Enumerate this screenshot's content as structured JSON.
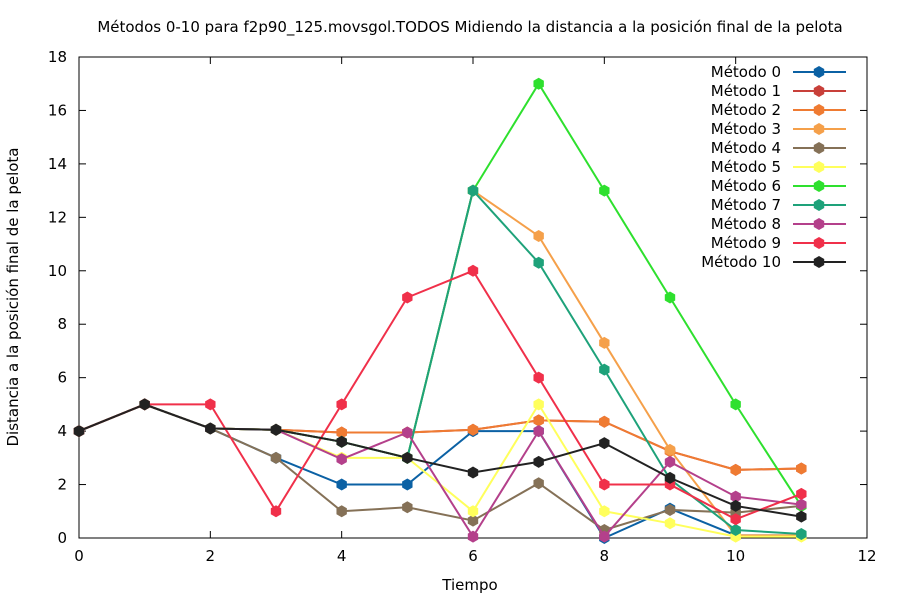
{
  "chart_data": {
    "type": "line",
    "title": "Métodos 0-10 para f2p90_125.movsgol.TODOS Midiendo la distancia a la posición final de la pelota",
    "xlabel": "Tiempo",
    "ylabel": "Distancia a la posición final de la pelota",
    "xlim": [
      0,
      12
    ],
    "ylim": [
      0,
      18
    ],
    "xticks": [
      0,
      2,
      4,
      6,
      8,
      10,
      12
    ],
    "yticks": [
      0,
      2,
      4,
      6,
      8,
      10,
      12,
      14,
      16,
      18
    ],
    "grid": false,
    "legend_position": "top-right",
    "x": [
      0,
      1,
      2,
      3,
      4,
      5,
      6,
      7,
      8,
      9,
      10,
      11
    ],
    "series": [
      {
        "name": "Método 0",
        "color": "#0b61a4",
        "values": [
          4,
          5,
          4.1,
          3,
          2,
          2,
          4,
          4,
          0,
          1.1,
          0.1,
          0.1
        ]
      },
      {
        "name": "Método 1",
        "color": "#c8403a",
        "values": [
          4,
          5,
          4.1,
          4.05,
          3.95,
          3.95,
          4.05,
          4.4,
          4.35,
          3.25,
          2.55,
          2.6
        ]
      },
      {
        "name": "Método 2",
        "color": "#ef7b32",
        "values": [
          4,
          5,
          4.1,
          4.05,
          3.95,
          3.95,
          4.05,
          4.4,
          4.35,
          3.25,
          2.55,
          2.6
        ]
      },
      {
        "name": "Método 3",
        "color": "#f5a04a",
        "values": [
          4,
          5,
          4.1,
          4.05,
          3.6,
          3,
          13,
          11.3,
          7.3,
          3.3,
          0.1,
          0.1
        ]
      },
      {
        "name": "Método 4",
        "color": "#857157",
        "values": [
          4,
          5,
          4.1,
          3,
          1,
          1.15,
          0.65,
          2.05,
          0.3,
          1.05,
          0.95,
          1.2
        ]
      },
      {
        "name": "Método 5",
        "color": "#ffff5c",
        "values": [
          4,
          5,
          4.1,
          4.05,
          3,
          3,
          1,
          5,
          1,
          0.55,
          0.05,
          0.05
        ]
      },
      {
        "name": "Método 6",
        "color": "#2ee02e",
        "values": [
          4,
          5,
          4.1,
          4.05,
          3.6,
          3,
          13,
          17,
          13,
          9,
          5,
          1.2
        ]
      },
      {
        "name": "Método 7",
        "color": "#1ea27a",
        "values": [
          4,
          5,
          4.1,
          4.05,
          3.6,
          3,
          13,
          10.3,
          6.3,
          2.2,
          0.3,
          0.15
        ]
      },
      {
        "name": "Método 8",
        "color": "#b4408b",
        "values": [
          4,
          5,
          4.1,
          4.05,
          2.95,
          3.95,
          0.05,
          4,
          0.05,
          2.85,
          1.55,
          1.25
        ]
      },
      {
        "name": "Método 9",
        "color": "#f0304a",
        "values": [
          4,
          5,
          5,
          1,
          5,
          9,
          10,
          6,
          2,
          2,
          0.7,
          1.65
        ]
      },
      {
        "name": "Método 10",
        "color": "#222222",
        "values": [
          4,
          5,
          4.1,
          4.05,
          3.6,
          3,
          2.45,
          2.85,
          3.55,
          2.25,
          1.2,
          0.8
        ]
      }
    ]
  }
}
